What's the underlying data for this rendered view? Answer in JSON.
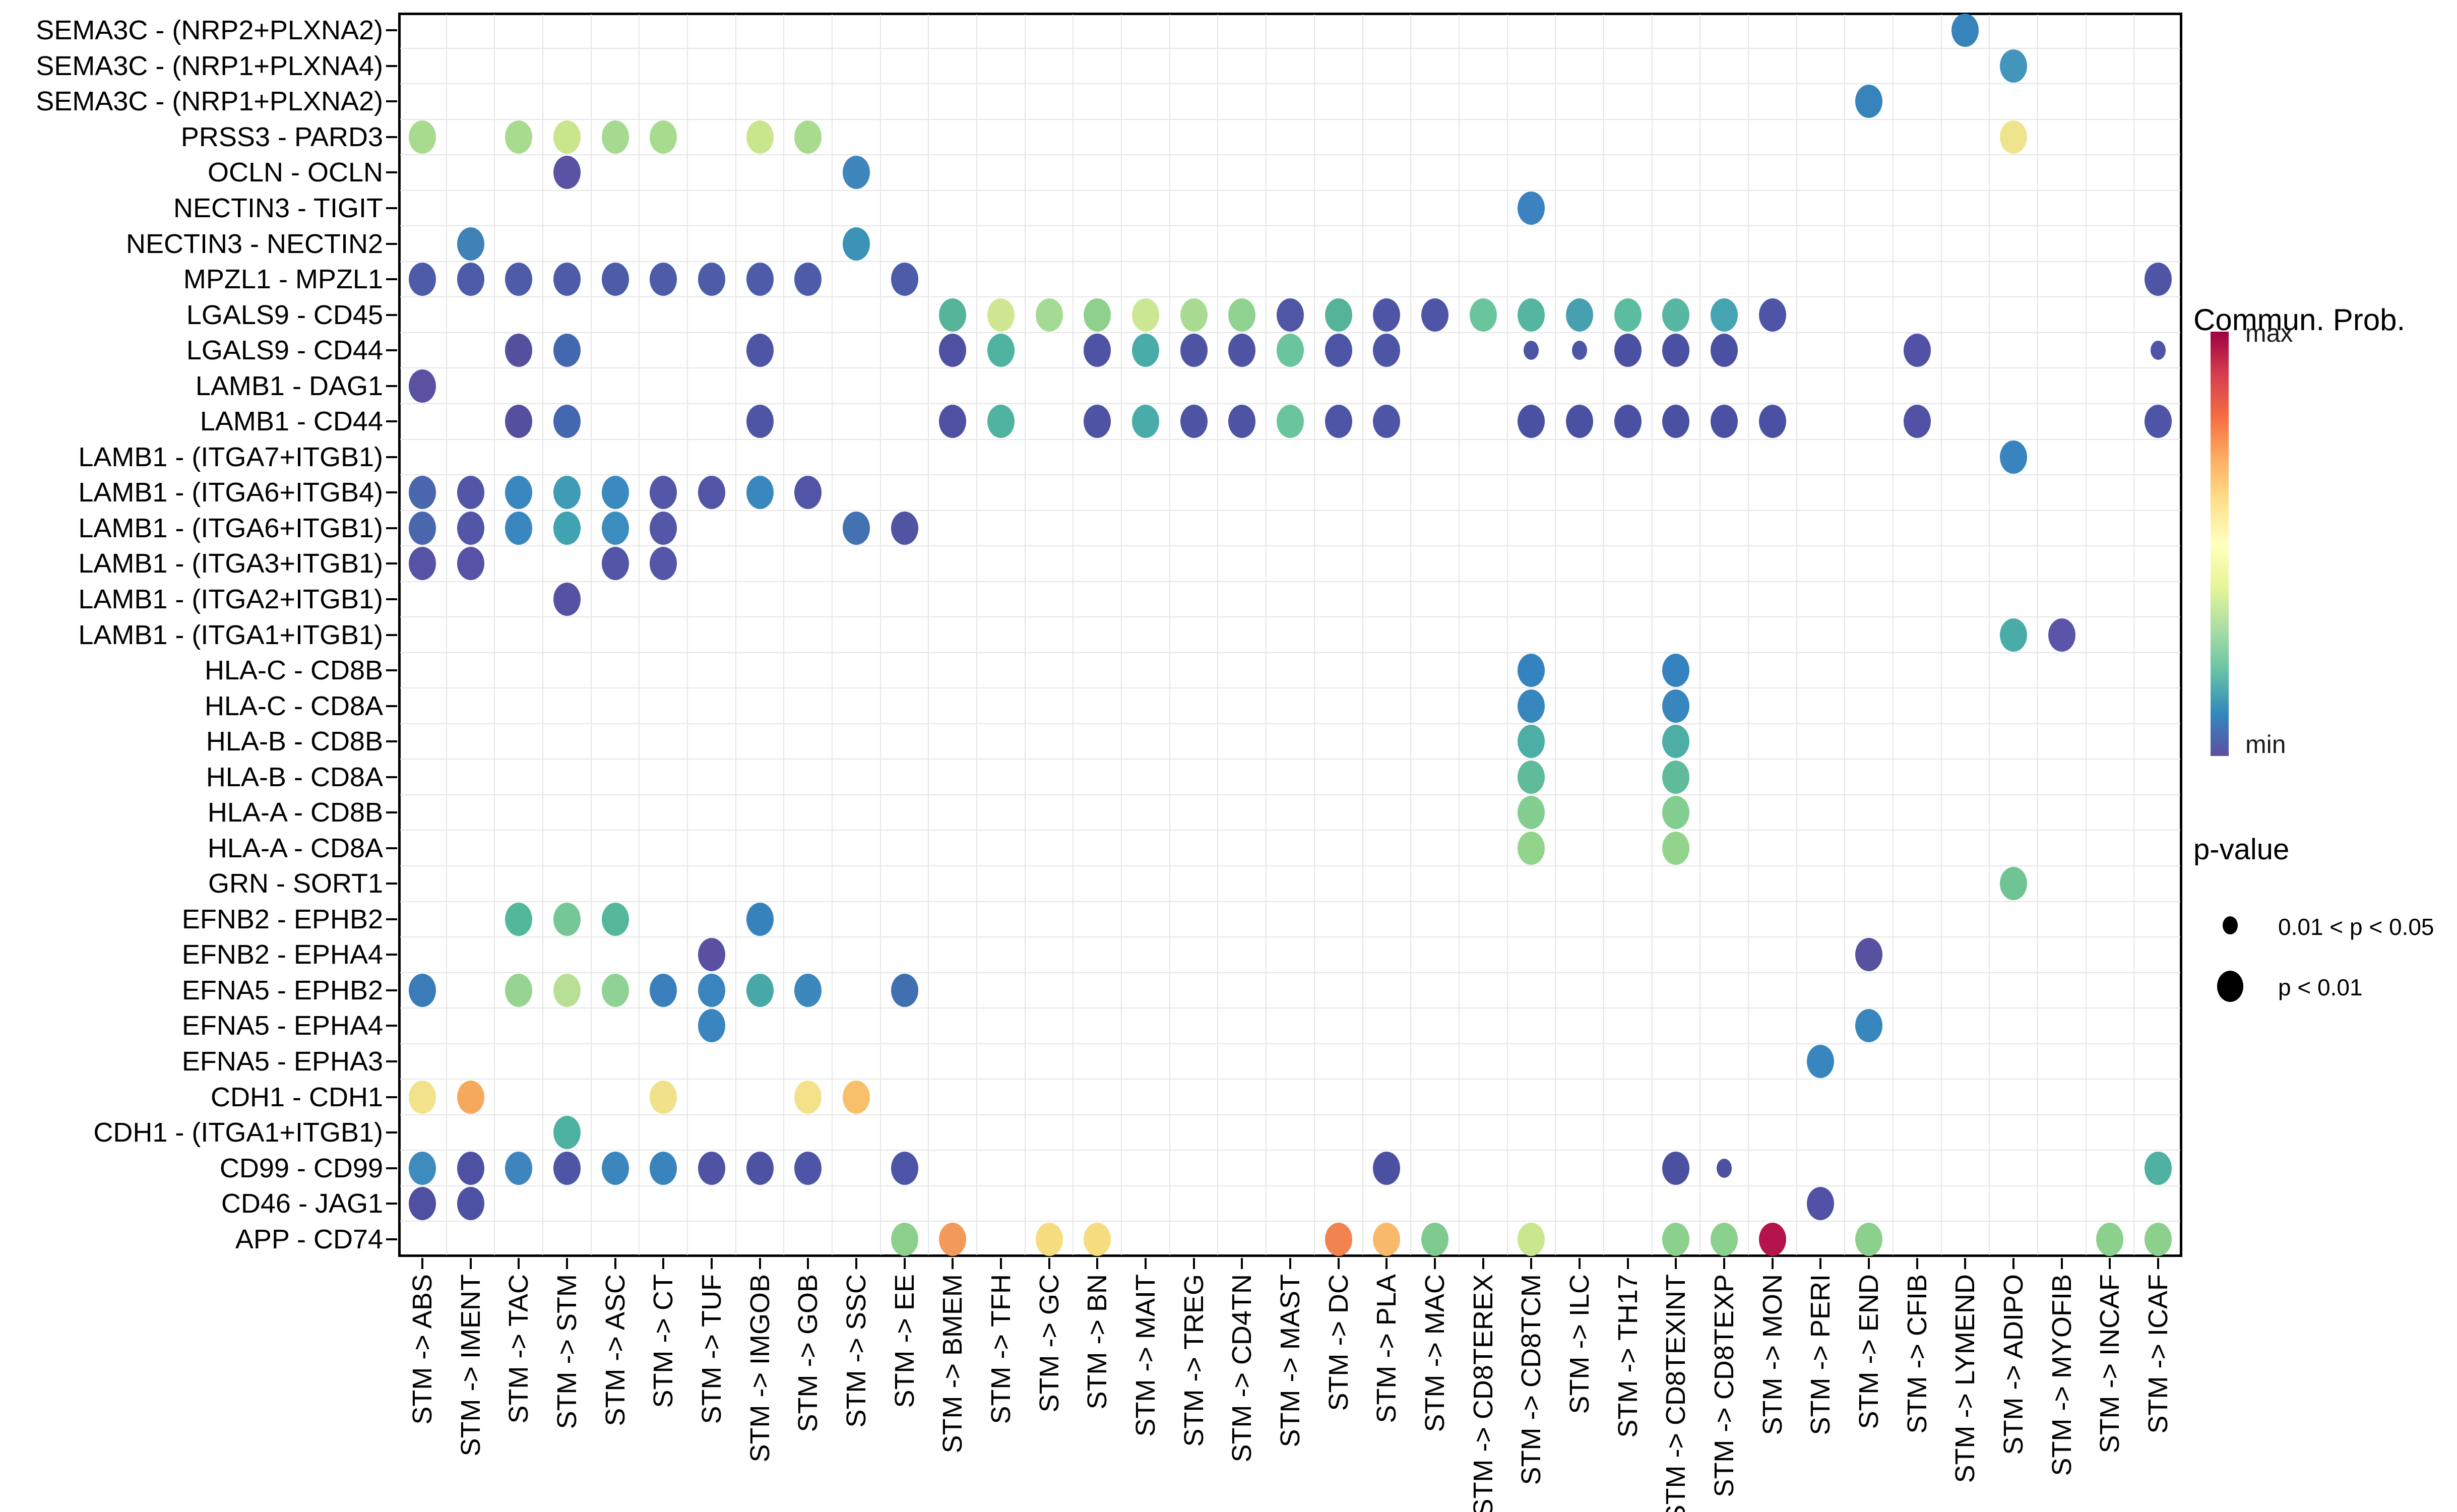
{
  "chart_data": {
    "type": "scatter",
    "subtype": "bubble-dot-plot",
    "x_categories": [
      "STM -> ABS",
      "STM -> IMENT",
      "STM -> TAC",
      "STM -> STM",
      "STM -> ASC",
      "STM -> CT",
      "STM -> TUF",
      "STM -> IMGOB",
      "STM -> GOB",
      "STM -> SSC",
      "STM -> EE",
      "STM -> BMEM",
      "STM -> TFH",
      "STM -> GC",
      "STM -> BN",
      "STM -> MAIT",
      "STM -> TREG",
      "STM -> CD4TN",
      "STM -> MAST",
      "STM -> DC",
      "STM -> PLA",
      "STM -> MAC",
      "STM -> CD8TEREX",
      "STM -> CD8TCM",
      "STM -> ILC",
      "STM -> TH17",
      "STM -> CD8TEXINT",
      "STM -> CD8TEXP",
      "STM -> MON",
      "STM -> PERI",
      "STM -> END",
      "STM -> CFIB",
      "STM -> LYMEND",
      "STM -> ADIPO",
      "STM -> MYOFIB",
      "STM -> INCAF",
      "STM -> ICAF"
    ],
    "y_categories": [
      "SEMA3C - (NRP2+PLXNA2)",
      "SEMA3C - (NRP1+PLXNA4)",
      "SEMA3C - (NRP1+PLXNA2)",
      "PRSS3 - PARD3",
      "OCLN - OCLN",
      "NECTIN3 - TIGIT",
      "NECTIN3 - NECTIN2",
      "MPZL1 - MPZL1",
      "LGALS9 - CD45",
      "LGALS9 - CD44",
      "LAMB1 - DAG1",
      "LAMB1 - CD44",
      "LAMB1 - (ITGA7+ITGB1)",
      "LAMB1 - (ITGA6+ITGB4)",
      "LAMB1 - (ITGA6+ITGB1)",
      "LAMB1 - (ITGA3+ITGB1)",
      "LAMB1 - (ITGA2+ITGB1)",
      "LAMB1 - (ITGA1+ITGB1)",
      "HLA-C - CD8B",
      "HLA-C - CD8A",
      "HLA-B - CD8B",
      "HLA-B - CD8A",
      "HLA-A - CD8B",
      "HLA-A - CD8A",
      "GRN - SORT1",
      "EFNB2 - EPHB2",
      "EFNB2 - EPHA4",
      "EFNA5 - EPHB2",
      "EFNA5 - EPHA4",
      "EFNA5 - EPHA3",
      "CDH1 - CDH1",
      "CDH1 - (ITGA1+ITGB1)",
      "CD99 - CD99",
      "CD46 - JAG1",
      "APP - CD74"
    ],
    "size_encoding": {
      "L": "p < 0.01",
      "S": "0.01 < p < 0.05"
    },
    "dots": [
      [
        0,
        32,
        "#3783BC",
        "L"
      ],
      [
        1,
        33,
        "#4395BB",
        "L"
      ],
      [
        2,
        30,
        "#3783BC",
        "L"
      ],
      [
        3,
        0,
        "#A8DB8E",
        "L"
      ],
      [
        3,
        2,
        "#A8DB8E",
        "L"
      ],
      [
        3,
        3,
        "#C9E68C",
        "L"
      ],
      [
        3,
        4,
        "#A5DA90",
        "L"
      ],
      [
        3,
        5,
        "#A8DB8E",
        "L"
      ],
      [
        3,
        7,
        "#C9E68C",
        "L"
      ],
      [
        3,
        8,
        "#A8DB8E",
        "L"
      ],
      [
        3,
        33,
        "#EFE48E",
        "L"
      ],
      [
        4,
        3,
        "#5A52A3",
        "L"
      ],
      [
        4,
        9,
        "#3E87BC",
        "L"
      ],
      [
        5,
        23,
        "#3C82C0",
        "L"
      ],
      [
        6,
        1,
        "#3E82B8",
        "L"
      ],
      [
        6,
        9,
        "#3C93B8",
        "L"
      ],
      [
        7,
        0,
        "#4C5CA8",
        "L"
      ],
      [
        7,
        1,
        "#4C5CA8",
        "L"
      ],
      [
        7,
        2,
        "#4C5CA8",
        "L"
      ],
      [
        7,
        3,
        "#4C5CA8",
        "L"
      ],
      [
        7,
        4,
        "#4C5CA8",
        "L"
      ],
      [
        7,
        5,
        "#4C5CA8",
        "L"
      ],
      [
        7,
        6,
        "#4C5CA8",
        "L"
      ],
      [
        7,
        7,
        "#4C5CA8",
        "L"
      ],
      [
        7,
        8,
        "#4C5CA8",
        "L"
      ],
      [
        7,
        10,
        "#4C5CA8",
        "L"
      ],
      [
        7,
        36,
        "#4F55A5",
        "L"
      ],
      [
        8,
        11,
        "#55B49A",
        "L"
      ],
      [
        8,
        12,
        "#CFE792",
        "L"
      ],
      [
        8,
        13,
        "#A5DA94",
        "L"
      ],
      [
        8,
        14,
        "#8FD18C",
        "L"
      ],
      [
        8,
        15,
        "#CBE794",
        "L"
      ],
      [
        8,
        16,
        "#A9DC92",
        "L"
      ],
      [
        8,
        17,
        "#90D28F",
        "L"
      ],
      [
        8,
        18,
        "#4F56A4",
        "L"
      ],
      [
        8,
        19,
        "#55B39A",
        "L"
      ],
      [
        8,
        20,
        "#4E55A6",
        "L"
      ],
      [
        8,
        21,
        "#4E55A6",
        "L"
      ],
      [
        8,
        22,
        "#6BC59C",
        "L"
      ],
      [
        8,
        23,
        "#54B6A0",
        "L"
      ],
      [
        8,
        24,
        "#47A0B0",
        "L"
      ],
      [
        8,
        25,
        "#5BBCA0",
        "L"
      ],
      [
        8,
        26,
        "#57B7A3",
        "L"
      ],
      [
        8,
        27,
        "#45A3B2",
        "L"
      ],
      [
        8,
        28,
        "#4E55A6",
        "L"
      ],
      [
        9,
        2,
        "#554FA0",
        "L"
      ],
      [
        9,
        3,
        "#4468B0",
        "L"
      ],
      [
        9,
        7,
        "#4E55A5",
        "L"
      ],
      [
        9,
        11,
        "#4E51A2",
        "L"
      ],
      [
        9,
        12,
        "#4FB3A0",
        "L"
      ],
      [
        9,
        14,
        "#4E53A4",
        "L"
      ],
      [
        9,
        15,
        "#4AACA8",
        "L"
      ],
      [
        9,
        16,
        "#4E53A4",
        "L"
      ],
      [
        9,
        17,
        "#4E53A4",
        "L"
      ],
      [
        9,
        18,
        "#6BC59C",
        "L"
      ],
      [
        9,
        19,
        "#4E55A6",
        "L"
      ],
      [
        9,
        20,
        "#4E55A6",
        "L"
      ],
      [
        9,
        23,
        "#4E55A6",
        "S"
      ],
      [
        9,
        24,
        "#4E55A6",
        "S"
      ],
      [
        9,
        25,
        "#4B51A2",
        "L"
      ],
      [
        9,
        26,
        "#4B51A2",
        "L"
      ],
      [
        9,
        27,
        "#4B51A2",
        "L"
      ],
      [
        9,
        31,
        "#5152A5",
        "L"
      ],
      [
        9,
        36,
        "#4E55A6",
        "S"
      ],
      [
        10,
        0,
        "#5B51A2",
        "L"
      ],
      [
        11,
        2,
        "#554FA0",
        "L"
      ],
      [
        11,
        3,
        "#4468B0",
        "L"
      ],
      [
        11,
        7,
        "#4E55A5",
        "L"
      ],
      [
        11,
        11,
        "#4E51A2",
        "L"
      ],
      [
        11,
        12,
        "#4FB3A0",
        "L"
      ],
      [
        11,
        14,
        "#4E53A4",
        "L"
      ],
      [
        11,
        15,
        "#4AACA8",
        "L"
      ],
      [
        11,
        16,
        "#4E53A4",
        "L"
      ],
      [
        11,
        17,
        "#4E53A4",
        "L"
      ],
      [
        11,
        18,
        "#6BC59C",
        "L"
      ],
      [
        11,
        19,
        "#4E55A6",
        "L"
      ],
      [
        11,
        20,
        "#4E55A6",
        "L"
      ],
      [
        11,
        23,
        "#4B51A2",
        "L"
      ],
      [
        11,
        24,
        "#4B51A2",
        "L"
      ],
      [
        11,
        25,
        "#4B51A2",
        "L"
      ],
      [
        11,
        26,
        "#4B51A2",
        "L"
      ],
      [
        11,
        27,
        "#4B51A2",
        "L"
      ],
      [
        11,
        28,
        "#4B51A2",
        "L"
      ],
      [
        11,
        31,
        "#5152A5",
        "L"
      ],
      [
        11,
        36,
        "#4E55A6",
        "L"
      ],
      [
        12,
        33,
        "#3884BF",
        "L"
      ],
      [
        13,
        0,
        "#4A66AC",
        "L"
      ],
      [
        13,
        1,
        "#5355A6",
        "L"
      ],
      [
        13,
        2,
        "#3987BE",
        "L"
      ],
      [
        13,
        3,
        "#3F9CB4",
        "L"
      ],
      [
        13,
        4,
        "#3A89BF",
        "L"
      ],
      [
        13,
        5,
        "#5456A7",
        "L"
      ],
      [
        13,
        6,
        "#5254A5",
        "L"
      ],
      [
        13,
        7,
        "#3A87BE",
        "L"
      ],
      [
        13,
        8,
        "#5254A5",
        "L"
      ],
      [
        14,
        0,
        "#4A66AC",
        "L"
      ],
      [
        14,
        1,
        "#5355A6",
        "L"
      ],
      [
        14,
        2,
        "#3987BE",
        "L"
      ],
      [
        14,
        3,
        "#41A2B2",
        "L"
      ],
      [
        14,
        4,
        "#3A8DBE",
        "L"
      ],
      [
        14,
        5,
        "#5456A7",
        "L"
      ],
      [
        14,
        9,
        "#4272B2",
        "L"
      ],
      [
        14,
        10,
        "#5153A3",
        "L"
      ],
      [
        15,
        0,
        "#5653A6",
        "L"
      ],
      [
        15,
        1,
        "#5653A6",
        "L"
      ],
      [
        15,
        4,
        "#5355A6",
        "L"
      ],
      [
        15,
        5,
        "#5456A7",
        "L"
      ],
      [
        16,
        3,
        "#5651A3",
        "L"
      ],
      [
        17,
        33,
        "#4AACA8",
        "L"
      ],
      [
        17,
        34,
        "#5A55A8",
        "L"
      ],
      [
        18,
        23,
        "#3583BE",
        "L"
      ],
      [
        18,
        26,
        "#3583BE",
        "L"
      ],
      [
        19,
        23,
        "#3886BE",
        "L"
      ],
      [
        19,
        26,
        "#3886BE",
        "L"
      ],
      [
        20,
        23,
        "#4CAEA5",
        "L"
      ],
      [
        20,
        26,
        "#4CAEA5",
        "L"
      ],
      [
        21,
        23,
        "#5FBB9A",
        "L"
      ],
      [
        21,
        26,
        "#5FBB9A",
        "L"
      ],
      [
        22,
        23,
        "#83CD90",
        "L"
      ],
      [
        22,
        26,
        "#83CD90",
        "L"
      ],
      [
        23,
        23,
        "#92D48C",
        "L"
      ],
      [
        23,
        26,
        "#92D48C",
        "L"
      ],
      [
        24,
        33,
        "#6FC493",
        "L"
      ],
      [
        25,
        2,
        "#53B79B",
        "L"
      ],
      [
        25,
        3,
        "#76C796",
        "L"
      ],
      [
        25,
        4,
        "#55B89B",
        "L"
      ],
      [
        25,
        7,
        "#3582BD",
        "L"
      ],
      [
        26,
        6,
        "#5A50A2",
        "L"
      ],
      [
        26,
        30,
        "#57519F",
        "L"
      ],
      [
        27,
        0,
        "#3A7CB8",
        "L"
      ],
      [
        27,
        2,
        "#97D492",
        "L"
      ],
      [
        27,
        3,
        "#B8E094",
        "L"
      ],
      [
        27,
        4,
        "#90D295",
        "L"
      ],
      [
        27,
        5,
        "#3A80BC",
        "L"
      ],
      [
        27,
        6,
        "#3A85BE",
        "L"
      ],
      [
        27,
        7,
        "#47A8A8",
        "L"
      ],
      [
        27,
        8,
        "#3C87BE",
        "L"
      ],
      [
        27,
        10,
        "#4070B0",
        "L"
      ],
      [
        28,
        6,
        "#3A85BE",
        "L"
      ],
      [
        28,
        30,
        "#3886BE",
        "L"
      ],
      [
        29,
        29,
        "#3886BE",
        "L"
      ],
      [
        30,
        0,
        "#F2E28C",
        "L"
      ],
      [
        30,
        1,
        "#F5A95C",
        "L"
      ],
      [
        30,
        5,
        "#F2E18B",
        "L"
      ],
      [
        30,
        8,
        "#F4E28A",
        "L"
      ],
      [
        30,
        9,
        "#F8C06A",
        "L"
      ],
      [
        31,
        3,
        "#4DB2A2",
        "L"
      ],
      [
        32,
        0,
        "#3E8BBE",
        "L"
      ],
      [
        32,
        1,
        "#4E51A2",
        "L"
      ],
      [
        32,
        2,
        "#3E85BD",
        "L"
      ],
      [
        32,
        3,
        "#4D55A5",
        "L"
      ],
      [
        32,
        4,
        "#3C86BE",
        "L"
      ],
      [
        32,
        5,
        "#3A84BE",
        "L"
      ],
      [
        32,
        6,
        "#5052A3",
        "L"
      ],
      [
        32,
        7,
        "#4D52A3",
        "L"
      ],
      [
        32,
        8,
        "#4E55A6",
        "L"
      ],
      [
        32,
        10,
        "#4C55A6",
        "L"
      ],
      [
        32,
        20,
        "#4C50A0",
        "L"
      ],
      [
        32,
        26,
        "#4C50A0",
        "L"
      ],
      [
        32,
        27,
        "#4C50A0",
        "S"
      ],
      [
        32,
        36,
        "#4FB1A2",
        "L"
      ],
      [
        33,
        0,
        "#4F50A2",
        "L"
      ],
      [
        33,
        1,
        "#4E52A4",
        "L"
      ],
      [
        33,
        29,
        "#5152A5",
        "L"
      ],
      [
        34,
        10,
        "#8CD08D",
        "L"
      ],
      [
        34,
        11,
        "#F29A5A",
        "L"
      ],
      [
        34,
        13,
        "#F7DC80",
        "L"
      ],
      [
        34,
        14,
        "#F7DC80",
        "L"
      ],
      [
        34,
        19,
        "#F0834F",
        "L"
      ],
      [
        34,
        20,
        "#F8B96A",
        "L"
      ],
      [
        34,
        21,
        "#7FCA8F",
        "L"
      ],
      [
        34,
        23,
        "#C9E78F",
        "L"
      ],
      [
        34,
        26,
        "#8CD08D",
        "L"
      ],
      [
        34,
        27,
        "#8CD08D",
        "L"
      ],
      [
        34,
        28,
        "#B4134B",
        "L"
      ],
      [
        34,
        30,
        "#8CD08D",
        "L"
      ],
      [
        34,
        35,
        "#8CD08D",
        "L"
      ],
      [
        34,
        36,
        "#8CD08D",
        "L"
      ]
    ],
    "legend": {
      "color_title": "Commun. Prob.",
      "color_max_label": "max",
      "color_min_label": "min",
      "colorbar_gradient_top_to_bottom": [
        "#9E0142",
        "#D53E4F",
        "#F46D43",
        "#FDAE61",
        "#FEE08B",
        "#FFFFBF",
        "#E6F598",
        "#ABDDA4",
        "#66C2A5",
        "#3288BD",
        "#5E4FA2"
      ],
      "size_title": "p-value",
      "size_items": [
        {
          "label": "0.01 < p < 0.05",
          "size": "small"
        },
        {
          "label": "p < 0.01",
          "size": "large"
        }
      ]
    },
    "layout": {
      "grid": "cell-boundaries",
      "gridline_color": "#e6e6e6",
      "panel_border_color": "#000000",
      "legend_position": "right"
    }
  }
}
